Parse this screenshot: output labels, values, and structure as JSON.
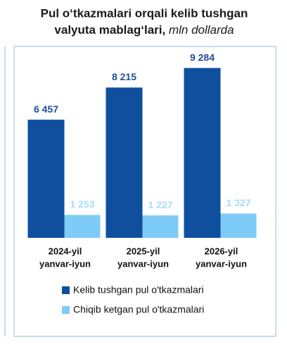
{
  "chart_data": {
    "type": "bar",
    "title_lines": [
      "Pul o‘tkazmalari orqali kelib tushgan",
      "valyuta mablag‘lari,"
    ],
    "subtitle": "mln dollarda",
    "categories": [
      [
        "2024-yil",
        "yanvar-iyun"
      ],
      [
        "2025-yil",
        "yanvar-iyun"
      ],
      [
        "2026-yil",
        "yanvar-iyun"
      ]
    ],
    "series": [
      {
        "name": "Kelib tushgan pul o'tkazmalari",
        "color": "#0f4f9e",
        "label_color": "#1f4e99",
        "values": [
          6457,
          8215,
          9284
        ],
        "value_labels": [
          "6 457",
          "8 215",
          "9 284"
        ]
      },
      {
        "name": "Chiqib ketgan pul o'tkazmalari",
        "color": "#7fcbf7",
        "label_color": "#a9dcf7",
        "values": [
          1253,
          1227,
          1327
        ],
        "value_labels": [
          "1 253",
          "1 227",
          "1 327"
        ]
      }
    ],
    "ylim": [
      0,
      10000
    ],
    "grid": false
  }
}
